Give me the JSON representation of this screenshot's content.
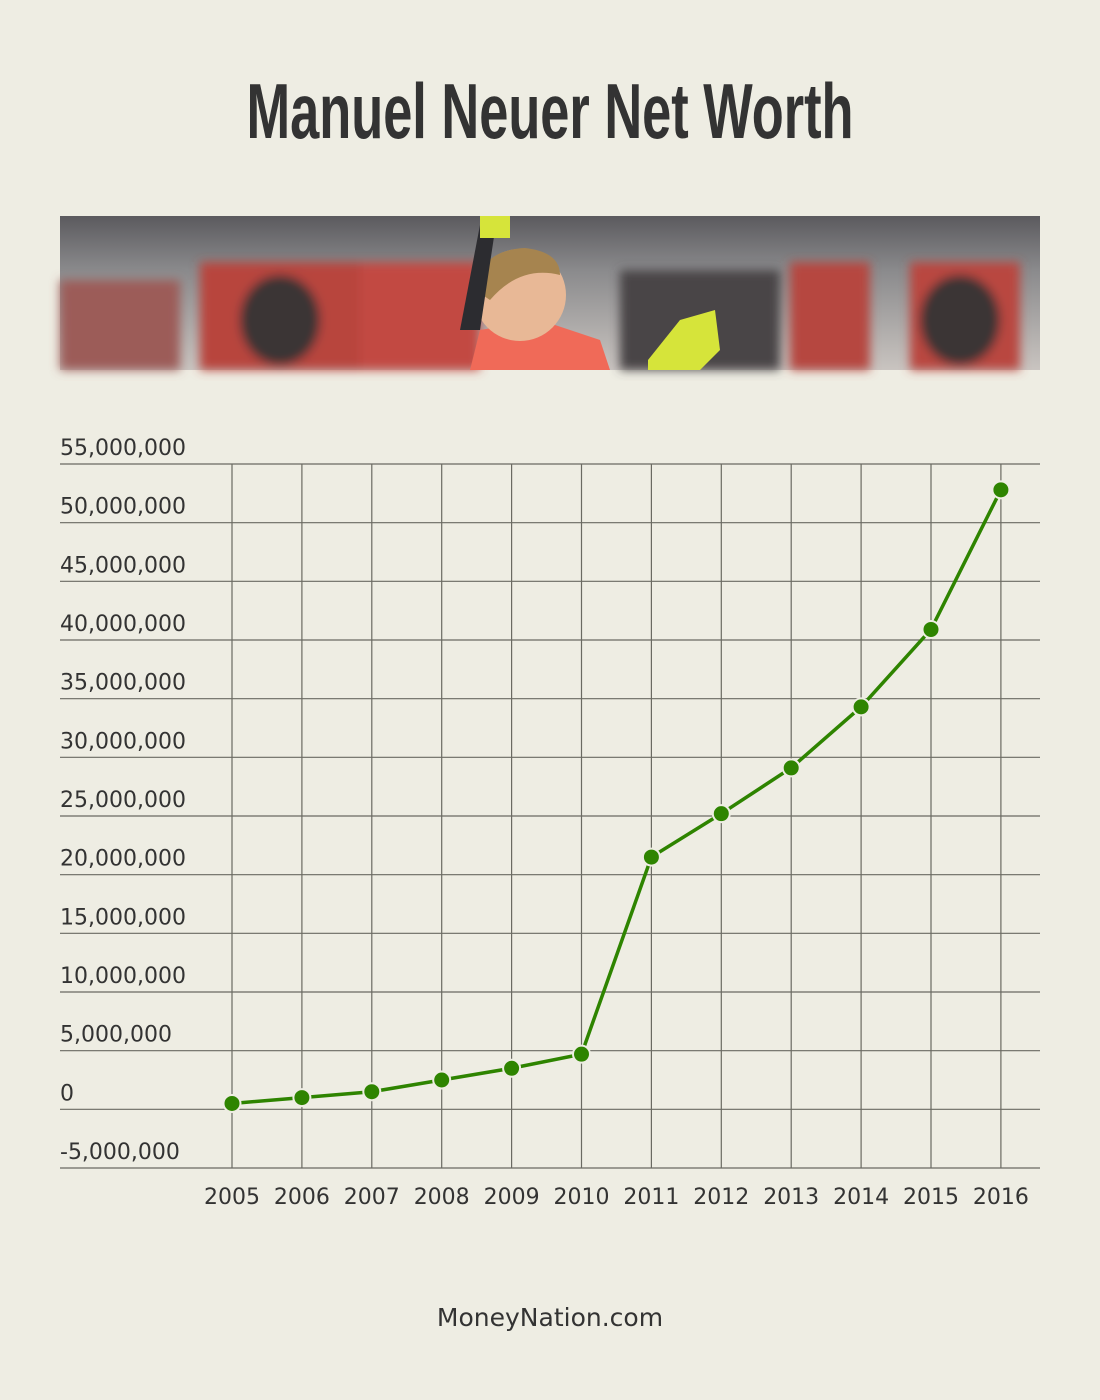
{
  "chart_data": {
    "type": "line",
    "title": "Manuel Neuer Net Worth",
    "categories": [
      "2005",
      "2006",
      "2007",
      "2008",
      "2009",
      "2010",
      "2011",
      "2012",
      "2013",
      "2014",
      "2015",
      "2016"
    ],
    "series": [
      {
        "color": "#2e8400",
        "values": [
          500000,
          1000000,
          1500000,
          2500000,
          3500000,
          4700000,
          21500000,
          25200000,
          29100000,
          34300000,
          40900000,
          52800000
        ]
      }
    ],
    "ylim": [
      -5000000,
      55000000
    ],
    "yticks": [
      {
        "value": -5000000,
        "label": "-5,000,000"
      },
      0,
      {
        "value": 5000000,
        "label": "5,000,000"
      },
      {
        "value": 10000000,
        "label": "10,000,000"
      },
      {
        "value": 15000000,
        "label": "15,000,000"
      },
      {
        "value": 20000000,
        "label": "20,000,000"
      },
      {
        "value": 25000000,
        "label": "25,000,000"
      },
      {
        "value": 30000000,
        "label": "30,000,000"
      },
      {
        "value": 35000000,
        "label": "35,000,000"
      },
      {
        "value": 40000000,
        "label": "40,000,000"
      },
      {
        "value": 45000000,
        "label": "45,000,000"
      },
      {
        "value": 50000000,
        "label": "50,000,000"
      },
      {
        "value": 55000000,
        "label": "55,000,000"
      }
    ],
    "grid": true
  },
  "source": "MoneyNation.com"
}
